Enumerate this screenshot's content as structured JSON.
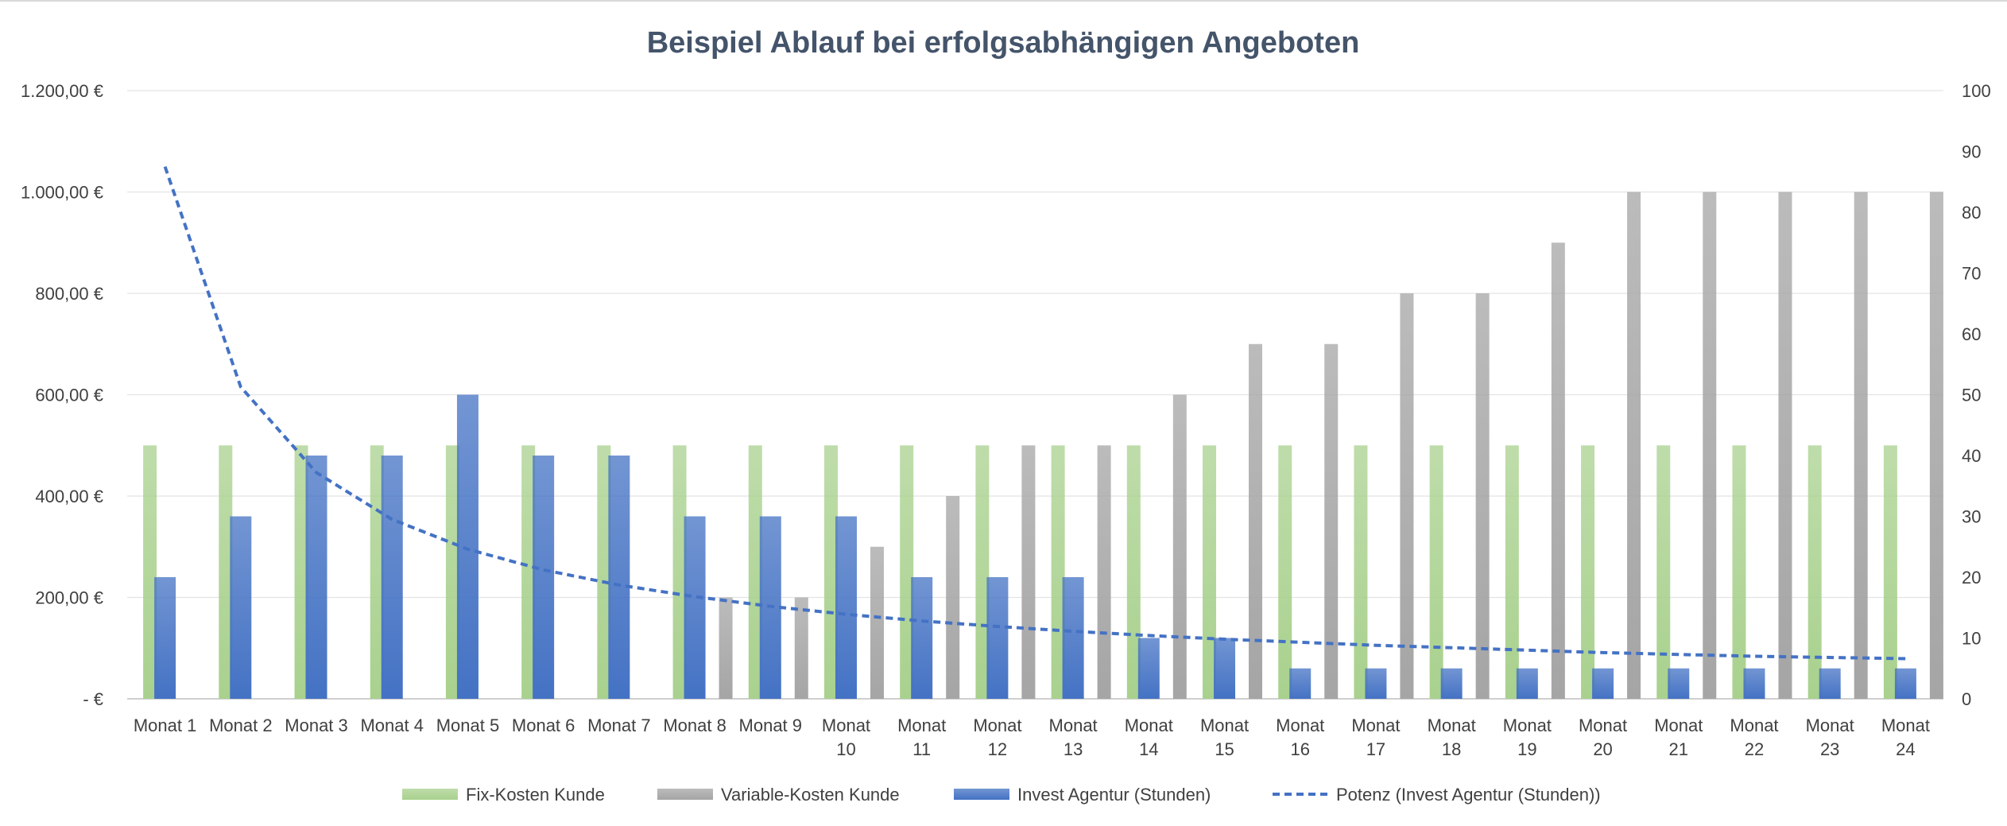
{
  "chart_data": {
    "type": "bar",
    "title": "Beispiel Ablauf bei erfolgsabhängigen Angeboten",
    "categories": [
      "Monat 1",
      "Monat 2",
      "Monat 3",
      "Monat 4",
      "Monat 5",
      "Monat 6",
      "Monat 7",
      "Monat 8",
      "Monat 9",
      "Monat 10",
      "Monat 11",
      "Monat 12",
      "Monat 13",
      "Monat 14",
      "Monat 15",
      "Monat 16",
      "Monat 17",
      "Monat 18",
      "Monat 19",
      "Monat 20",
      "Monat 21",
      "Monat 22",
      "Monat 23",
      "Monat 24"
    ],
    "category_lines": [
      [
        "Monat 1"
      ],
      [
        "Monat 2"
      ],
      [
        "Monat 3"
      ],
      [
        "Monat 4"
      ],
      [
        "Monat 5"
      ],
      [
        "Monat 6"
      ],
      [
        "Monat 7"
      ],
      [
        "Monat 8"
      ],
      [
        "Monat 9"
      ],
      [
        "Monat",
        "10"
      ],
      [
        "Monat",
        "11"
      ],
      [
        "Monat",
        "12"
      ],
      [
        "Monat",
        "13"
      ],
      [
        "Monat",
        "14"
      ],
      [
        "Monat",
        "15"
      ],
      [
        "Monat",
        "16"
      ],
      [
        "Monat",
        "17"
      ],
      [
        "Monat",
        "18"
      ],
      [
        "Monat",
        "19"
      ],
      [
        "Monat",
        "20"
      ],
      [
        "Monat",
        "21"
      ],
      [
        "Monat",
        "22"
      ],
      [
        "Monat",
        "23"
      ],
      [
        "Monat",
        "24"
      ]
    ],
    "series": [
      {
        "name": "Fix-Kosten Kunde",
        "axis": "left",
        "color": "#a9d18e",
        "values": [
          500,
          500,
          500,
          500,
          500,
          500,
          500,
          500,
          500,
          500,
          500,
          500,
          500,
          500,
          500,
          500,
          500,
          500,
          500,
          500,
          500,
          500,
          500,
          500
        ]
      },
      {
        "name": "Variable-Kosten Kunde",
        "axis": "left",
        "color": "#a5a5a5",
        "values": [
          0,
          0,
          0,
          0,
          0,
          0,
          0,
          200,
          200,
          300,
          400,
          500,
          500,
          600,
          700,
          700,
          800,
          800,
          900,
          1000,
          1000,
          1000,
          1000,
          1000
        ]
      },
      {
        "name": "Invest Agentur (Stunden)",
        "axis": "right",
        "color": "#4472c4",
        "values": [
          20,
          30,
          40,
          40,
          50,
          40,
          40,
          30,
          30,
          30,
          20,
          20,
          20,
          10,
          10,
          5,
          5,
          5,
          5,
          5,
          5,
          5,
          5,
          5
        ]
      }
    ],
    "trendline": {
      "name": "Potenz (Invest Agentur (Stunden))",
      "type": "power",
      "of_series": "Invest Agentur (Stunden)",
      "axis": "right",
      "color": "#4472c4",
      "values": [
        87.5,
        51.3,
        37.2,
        29.5,
        24.6,
        21.2,
        18.7,
        16.8,
        15.2,
        13.9,
        12.8,
        11.9,
        11.1,
        10.4,
        9.8,
        9.3,
        8.8,
        8.4,
        8.0,
        7.6,
        7.3,
        7.0,
        6.8,
        6.6
      ]
    },
    "y_left": {
      "ylim": [
        0,
        1200
      ],
      "ticks": [
        0,
        200,
        400,
        600,
        800,
        1000,
        1200
      ],
      "tick_labels": [
        "-   €",
        "200,00 €",
        "400,00 €",
        "600,00 €",
        "800,00 €",
        "1.000,00 €",
        "1.200,00 €"
      ]
    },
    "y_right": {
      "ylim": [
        0,
        100
      ],
      "ticks": [
        0,
        10,
        20,
        30,
        40,
        50,
        60,
        70,
        80,
        90,
        100
      ],
      "tick_labels": [
        "0",
        "10",
        "20",
        "30",
        "40",
        "50",
        "60",
        "70",
        "80",
        "90",
        "100"
      ]
    },
    "grid": true,
    "legend": "bottom",
    "xlabel": "",
    "ylabel": ""
  }
}
